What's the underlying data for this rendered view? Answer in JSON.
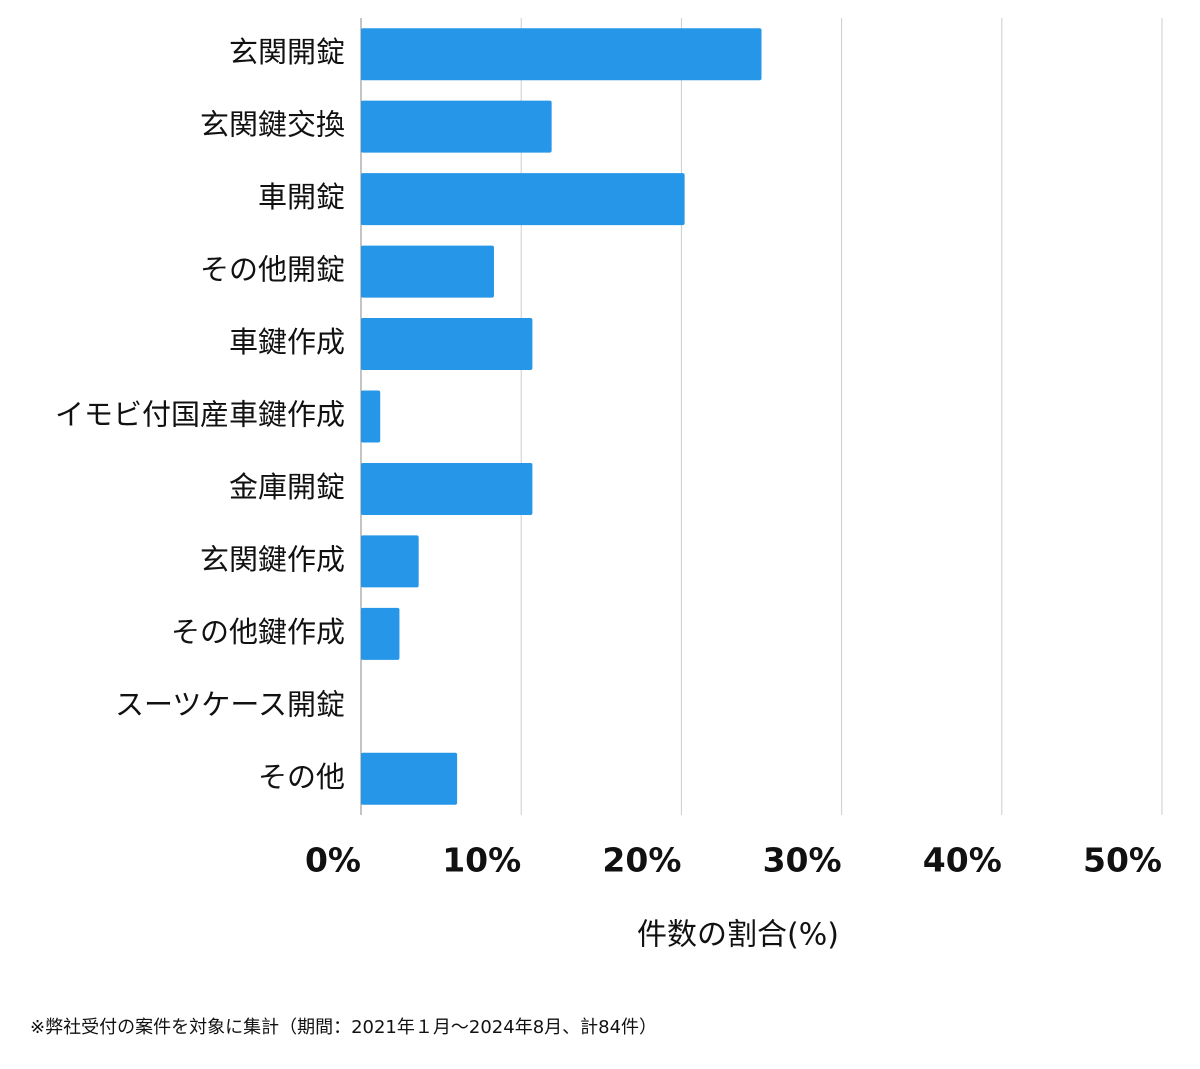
{
  "chart_data": {
    "type": "hbar",
    "categories": [
      "玄関開錠",
      "玄関鍵交換",
      "車開錠",
      "その他開錠",
      "車鍵作成",
      "イモビ付国産車鍵作成",
      "金庫開錠",
      "玄関鍵作成",
      "その他鍵作成",
      "スーツケース開錠",
      "その他"
    ],
    "values": [
      25.0,
      11.9,
      20.2,
      8.3,
      10.7,
      1.2,
      10.7,
      3.6,
      2.4,
      0,
      6.0
    ],
    "color": "#2696e8",
    "xlim": [
      0,
      50
    ],
    "xticks": [
      {
        "value": 0,
        "label": "0%"
      },
      {
        "value": 10,
        "label": "10%"
      },
      {
        "value": 20,
        "label": "20%"
      },
      {
        "value": 30,
        "label": "30%"
      },
      {
        "value": 40,
        "label": "40%"
      },
      {
        "value": 50,
        "label": "50%"
      }
    ],
    "grid": true,
    "x_label": "件数の割合(%)",
    "footnote": "※弊社受付の案件を対象に集計（期間：2021年１月～2024年8月、計84件）"
  }
}
